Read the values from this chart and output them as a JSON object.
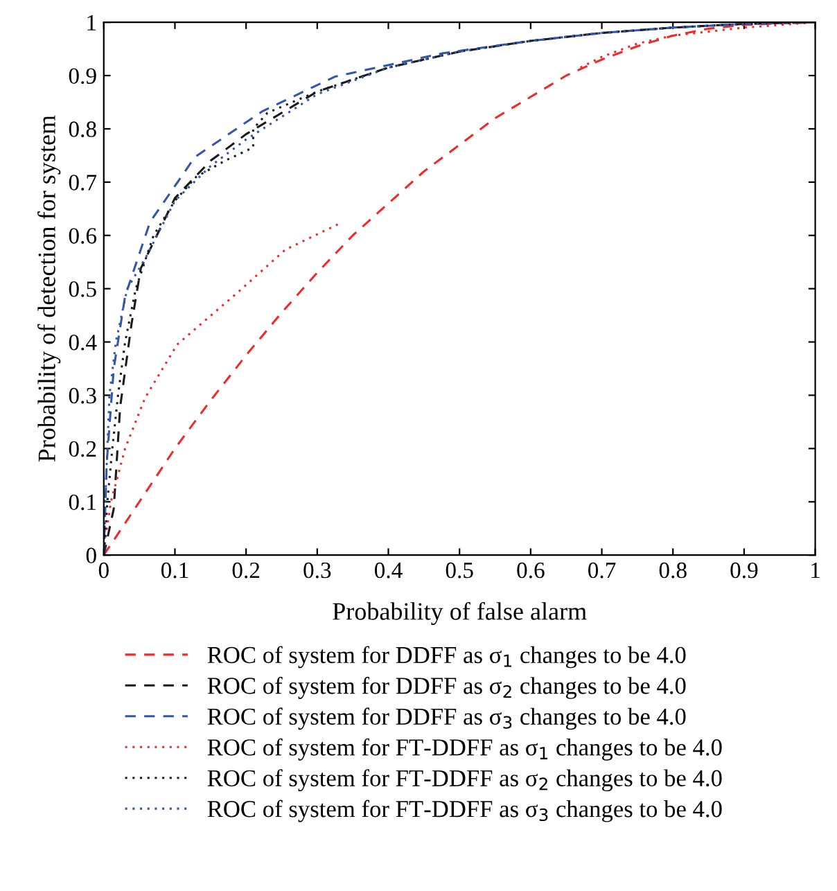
{
  "chart_data": {
    "type": "line",
    "xlabel": "Probability of false alarm",
    "ylabel": "Probability of detection for system",
    "xlim": [
      0,
      1
    ],
    "ylim": [
      0,
      1
    ],
    "xticks": [
      0,
      0.1,
      0.2,
      0.3,
      0.4,
      0.5,
      0.6,
      0.7,
      0.8,
      0.9,
      1
    ],
    "yticks": [
      0,
      0.1,
      0.2,
      0.3,
      0.4,
      0.5,
      0.6,
      0.7,
      0.8,
      0.9,
      1
    ],
    "grid": false,
    "legend": "bottom",
    "marker": "none",
    "series": [
      {
        "name": "ROC of system for DDFF as σ$_{1}$ changes to be 4.0",
        "color": "#ee2a2a",
        "line_style": "dashed",
        "x": [
          0,
          0.05,
          0.1,
          0.15,
          0.2,
          0.25,
          0.3,
          0.35,
          0.4,
          0.45,
          0.5,
          0.55,
          0.6,
          0.65,
          0.7,
          0.75,
          0.8,
          0.85,
          0.9,
          0.95,
          1
        ],
        "values": [
          0,
          0.1,
          0.2,
          0.29,
          0.375,
          0.455,
          0.53,
          0.6,
          0.66,
          0.72,
          0.77,
          0.82,
          0.86,
          0.9,
          0.93,
          0.955,
          0.975,
          0.988,
          0.995,
          0.998,
          1
        ]
      },
      {
        "name": "ROC of system for DDFF as σ$_{2}$ changes to be 4.0",
        "color": "#1a1a1a",
        "line_style": "dashed",
        "x": [
          0,
          0.014,
          0.023,
          0.039,
          0.052,
          0.1,
          0.15,
          0.2,
          0.3,
          0.4,
          0.5,
          0.6,
          0.7,
          0.8,
          0.9,
          1
        ],
        "values": [
          0,
          0.087,
          0.278,
          0.434,
          0.538,
          0.67,
          0.74,
          0.79,
          0.87,
          0.915,
          0.945,
          0.965,
          0.98,
          0.99,
          0.997,
          1
        ]
      },
      {
        "name": "ROC of system for DDFF as σ$_{3}$ changes to be 4.0",
        "color": "#3355aa",
        "line_style": "dashed",
        "x": [
          0,
          0.004,
          0.014,
          0.03,
          0.065,
          0.128,
          0.223,
          0.325,
          0.477,
          0.6,
          0.7,
          0.8,
          0.9,
          1
        ],
        "values": [
          0,
          0.17,
          0.35,
          0.486,
          0.625,
          0.747,
          0.833,
          0.898,
          0.942,
          0.965,
          0.98,
          0.99,
          0.997,
          1
        ]
      },
      {
        "name": "ROC of system for FT-DDFF as σ$_{1}$ changes to be 4.0",
        "color": "#ee2a2a",
        "line_style": "dotted",
        "x": [
          0.001,
          0.01,
          0.03,
          0.058,
          0.103,
          0.19,
          0.255,
          0.331,
          null,
          0.67,
          0.7,
          0.75,
          0.8,
          0.9,
          1
        ],
        "values": [
          0.02,
          0.1,
          0.2,
          0.295,
          0.395,
          0.495,
          0.573,
          0.622,
          null,
          0.915,
          0.935,
          0.96,
          0.975,
          0.99,
          1
        ]
      },
      {
        "name": "ROC of system for FT-DDFF as σ$_{2}$ changes to be 4.0",
        "color": "#1a1a1a",
        "line_style": "dotted",
        "x": [
          0.001,
          0.005,
          0.012,
          0.02,
          0.03,
          0.045,
          0.07,
          0.1,
          0.13,
          0.17,
          0.21,
          0.21,
          0.23,
          0.3,
          0.4,
          0.5,
          0.6,
          0.7,
          0.8,
          0.9,
          1
        ],
        "values": [
          0.02,
          0.1,
          0.2,
          0.3,
          0.4,
          0.5,
          0.6,
          0.665,
          0.71,
          0.74,
          0.765,
          0.8,
          0.83,
          0.87,
          0.915,
          0.945,
          0.965,
          0.98,
          0.99,
          0.997,
          1
        ]
      },
      {
        "name": "ROC of system for FT-DDFF as σ$_{3}$ changes to be 4.0",
        "color": "#3355aa",
        "line_style": "dotted",
        "x": [
          0.001,
          0.002,
          0.005,
          0.008,
          0.017,
          0.033,
          0.058,
          0.1,
          0.15,
          0.2,
          0.3,
          0.4,
          0.5,
          0.6,
          0.7,
          0.8,
          0.9,
          1
        ],
        "values": [
          0.03,
          0.1,
          0.2,
          0.3,
          0.4,
          0.5,
          0.556,
          0.665,
          0.73,
          0.78,
          0.865,
          0.915,
          0.945,
          0.965,
          0.98,
          0.99,
          0.997,
          1
        ]
      }
    ]
  }
}
